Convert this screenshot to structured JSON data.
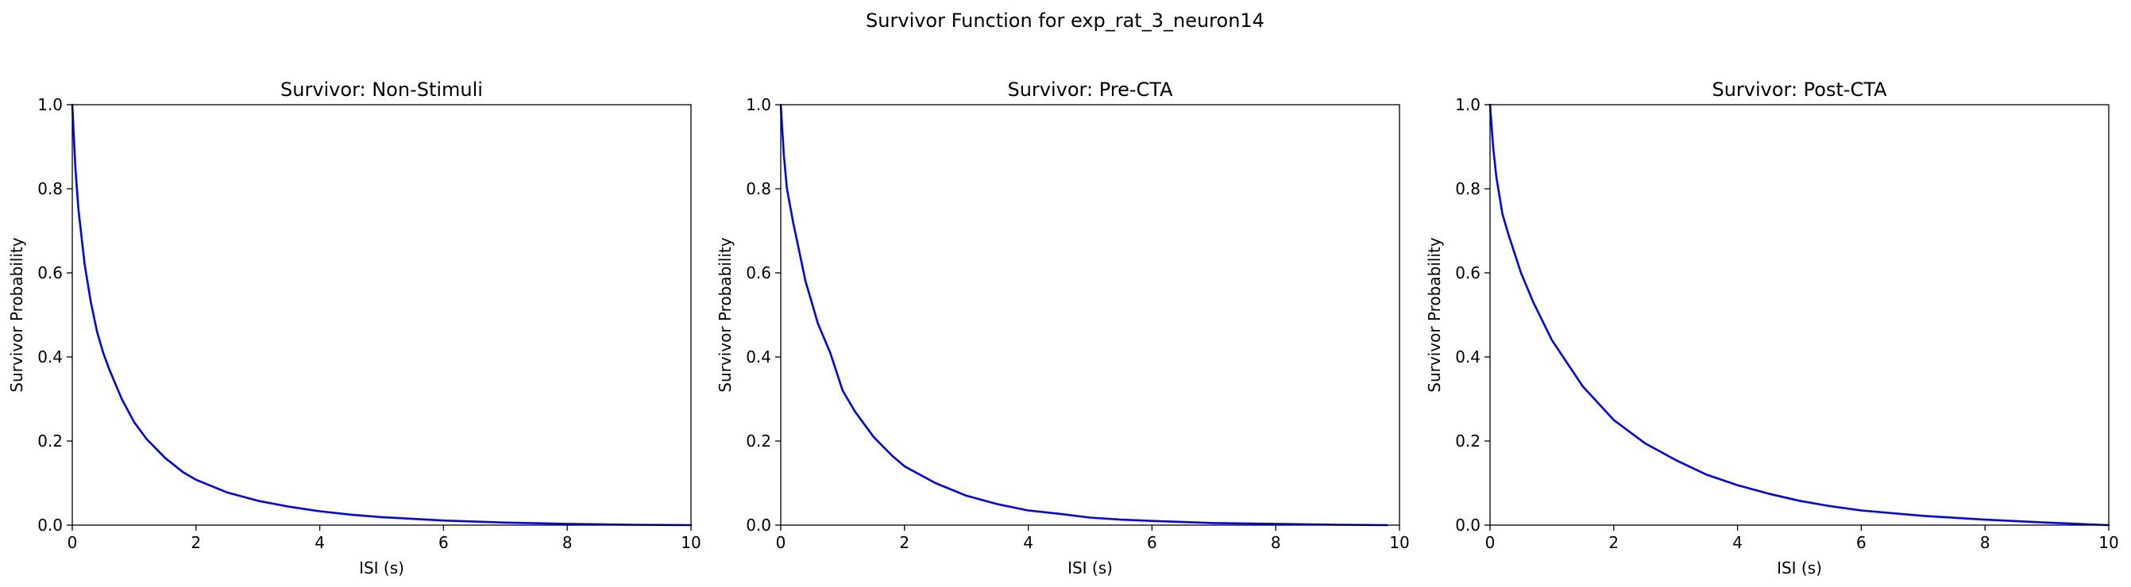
{
  "suptitle": "Survivor Function for exp_rat_3_neuron14",
  "line_color": "#0000ff",
  "chart_data": [
    {
      "type": "line",
      "title": "Survivor: Non-Stimuli",
      "xlabel": "ISI (s)",
      "ylabel": "Survivor Probability",
      "xlim": [
        0,
        10
      ],
      "ylim": [
        0,
        1
      ],
      "xticks": [
        "0",
        "2",
        "4",
        "6",
        "8",
        "10"
      ],
      "yticks": [
        "0.0",
        "0.2",
        "0.4",
        "0.6",
        "0.8",
        "1.0"
      ],
      "grid": false,
      "series": [
        {
          "x": [
            0,
            0.05,
            0.1,
            0.2,
            0.3,
            0.4,
            0.5,
            0.6,
            0.8,
            1.0,
            1.2,
            1.5,
            1.8,
            2.0,
            2.5,
            3.0,
            3.5,
            4.0,
            4.5,
            5.0,
            6.0,
            7.0,
            8.0,
            9.0,
            10.0
          ],
          "y": [
            1.0,
            0.85,
            0.75,
            0.62,
            0.53,
            0.46,
            0.41,
            0.37,
            0.3,
            0.245,
            0.205,
            0.16,
            0.125,
            0.108,
            0.078,
            0.058,
            0.044,
            0.033,
            0.025,
            0.019,
            0.011,
            0.006,
            0.003,
            0.001,
            0.0
          ]
        }
      ]
    },
    {
      "type": "line",
      "title": "Survivor: Pre-CTA",
      "xlabel": "ISI (s)",
      "ylabel": "Survivor Probability",
      "xlim": [
        0,
        10
      ],
      "ylim": [
        0,
        1
      ],
      "xticks": [
        "0",
        "2",
        "4",
        "6",
        "8",
        "10"
      ],
      "yticks": [
        "0.0",
        "0.2",
        "0.4",
        "0.6",
        "0.8",
        "1.0"
      ],
      "grid": false,
      "series": [
        {
          "x": [
            0,
            0.05,
            0.1,
            0.2,
            0.3,
            0.4,
            0.5,
            0.6,
            0.8,
            1.0,
            1.2,
            1.5,
            1.8,
            2.0,
            2.5,
            3.0,
            3.5,
            4.0,
            4.5,
            5.0,
            5.5,
            6.0,
            7.0,
            8.0,
            9.0,
            9.8
          ],
          "y": [
            1.0,
            0.88,
            0.8,
            0.72,
            0.65,
            0.58,
            0.53,
            0.48,
            0.41,
            0.32,
            0.27,
            0.21,
            0.165,
            0.14,
            0.1,
            0.07,
            0.05,
            0.035,
            0.027,
            0.018,
            0.013,
            0.01,
            0.005,
            0.003,
            0.001,
            0.0
          ]
        }
      ]
    },
    {
      "type": "line",
      "title": "Survivor: Post-CTA",
      "xlabel": "ISI (s)",
      "ylabel": "Survivor Probability",
      "xlim": [
        0,
        10
      ],
      "ylim": [
        0,
        1
      ],
      "xticks": [
        "0",
        "2",
        "4",
        "6",
        "8",
        "10"
      ],
      "yticks": [
        "0.0",
        "0.2",
        "0.4",
        "0.6",
        "0.8",
        "1.0"
      ],
      "grid": false,
      "series": [
        {
          "x": [
            0,
            0.05,
            0.1,
            0.2,
            0.3,
            0.5,
            0.7,
            1.0,
            1.5,
            2.0,
            2.5,
            3.0,
            3.5,
            4.0,
            4.5,
            5.0,
            5.5,
            6.0,
            7.0,
            8.0,
            9.0,
            10.0
          ],
          "y": [
            1.0,
            0.9,
            0.83,
            0.74,
            0.69,
            0.6,
            0.53,
            0.44,
            0.33,
            0.25,
            0.195,
            0.155,
            0.12,
            0.095,
            0.075,
            0.058,
            0.045,
            0.035,
            0.022,
            0.013,
            0.006,
            0.0
          ]
        }
      ]
    }
  ]
}
